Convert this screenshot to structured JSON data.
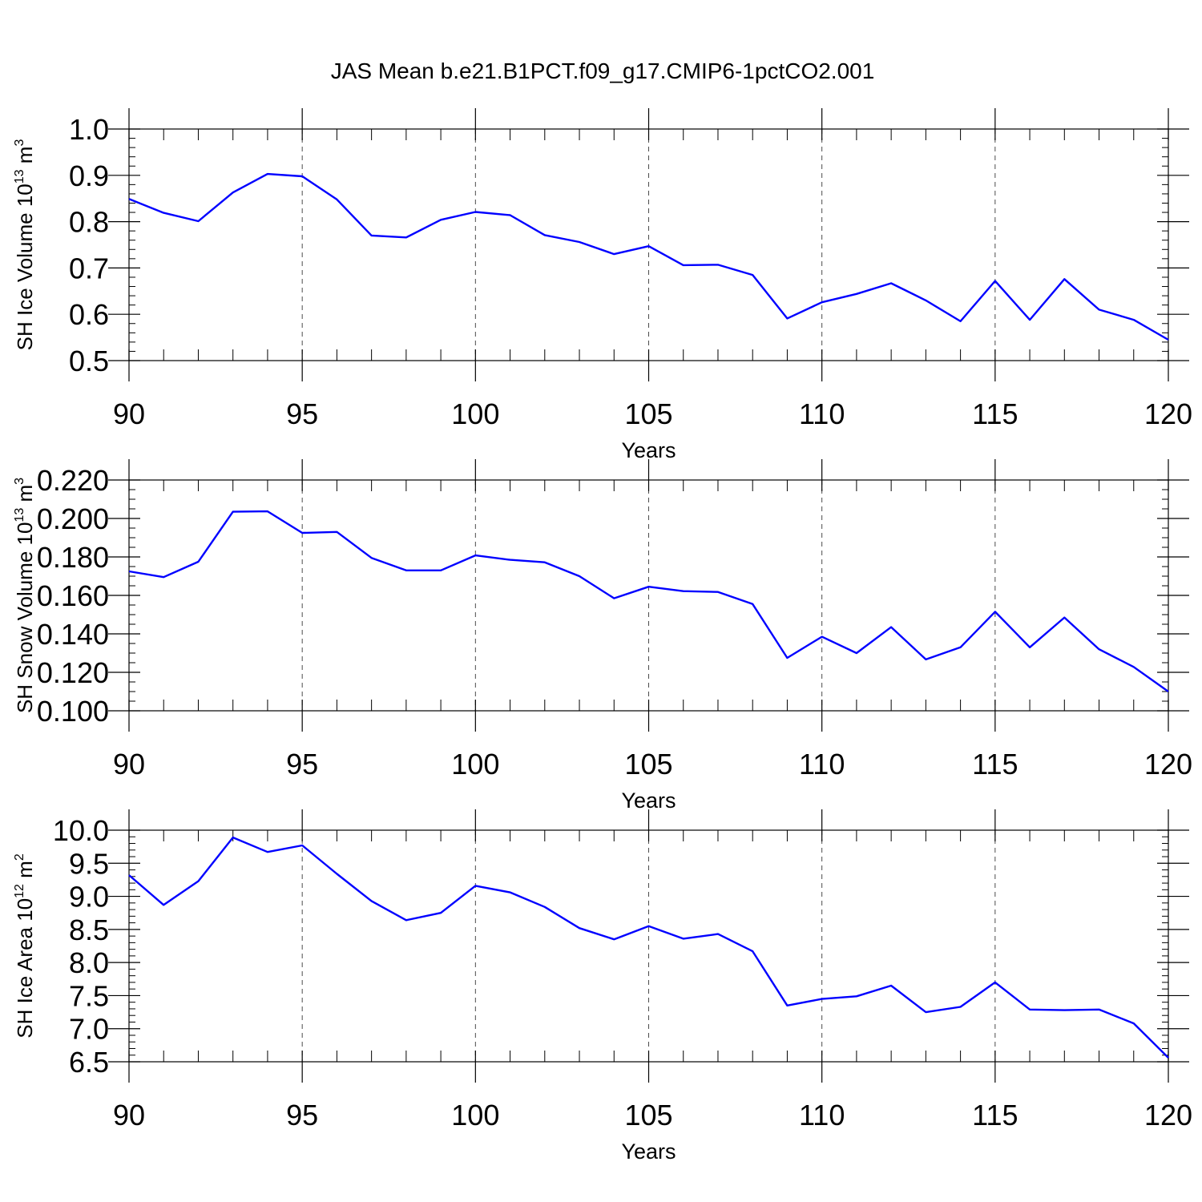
{
  "title": "JAS Mean b.e21.B1PCT.f09_g17.CMIP6-1pctCO2.001",
  "line_color": "#0000ff",
  "chart_data": [
    {
      "type": "line",
      "title": "JAS Mean b.e21.B1PCT.f09_g17.CMIP6-1pctCO2.001",
      "xlabel": "Years",
      "ylabel_main": "SH Ice Volume 10",
      "ylabel_sup": "13",
      "ylabel_unit": "m",
      "ylabel_unit_sup": "3",
      "xlim": [
        90,
        120
      ],
      "ylim": [
        0.5,
        1.0
      ],
      "x_ticks": [
        90,
        95,
        100,
        105,
        110,
        115,
        120
      ],
      "x_tick_labels": [
        "90",
        "95",
        "100",
        "105",
        "110",
        "115",
        "120"
      ],
      "y_ticks": [
        0.5,
        0.6,
        0.7,
        0.8,
        0.9,
        1.0
      ],
      "y_tick_labels": [
        "0.5",
        "0.6",
        "0.7",
        "0.8",
        "0.9",
        "1.0"
      ],
      "y_minor_step": 0.02,
      "grid": "dashed vertical at major x ticks",
      "x": [
        90,
        91,
        92,
        93,
        94,
        95,
        96,
        97,
        98,
        99,
        100,
        101,
        102,
        103,
        104,
        105,
        106,
        107,
        108,
        109,
        110,
        111,
        112,
        113,
        114,
        115,
        116,
        117,
        118,
        119,
        120
      ],
      "values": [
        0.849,
        0.819,
        0.801,
        0.863,
        0.903,
        0.898,
        0.848,
        0.77,
        0.766,
        0.804,
        0.821,
        0.814,
        0.771,
        0.756,
        0.73,
        0.747,
        0.706,
        0.707,
        0.685,
        0.591,
        0.626,
        0.644,
        0.667,
        0.63,
        0.585,
        0.672,
        0.588,
        0.676,
        0.61,
        0.588,
        0.545
      ]
    },
    {
      "type": "line",
      "xlabel": "Years",
      "ylabel_main": "SH Snow Volume 10",
      "ylabel_sup": "13",
      "ylabel_unit": "m",
      "ylabel_unit_sup": "3",
      "xlim": [
        90,
        120
      ],
      "ylim": [
        0.1,
        0.22
      ],
      "x_ticks": [
        90,
        95,
        100,
        105,
        110,
        115,
        120
      ],
      "x_tick_labels": [
        "90",
        "95",
        "100",
        "105",
        "110",
        "115",
        "120"
      ],
      "y_ticks": [
        0.1,
        0.12,
        0.14,
        0.16,
        0.18,
        0.2,
        0.22
      ],
      "y_tick_labels": [
        "0.100",
        "0.120",
        "0.140",
        "0.160",
        "0.180",
        "0.200",
        "0.220"
      ],
      "y_minor_step": 0.005,
      "grid": "dashed vertical at major x ticks",
      "x": [
        90,
        91,
        92,
        93,
        94,
        95,
        96,
        97,
        98,
        99,
        100,
        101,
        102,
        103,
        104,
        105,
        106,
        107,
        108,
        109,
        110,
        111,
        112,
        113,
        114,
        115,
        116,
        117,
        118,
        119,
        120
      ],
      "values": [
        0.1725,
        0.1695,
        0.1775,
        0.2035,
        0.2037,
        0.1925,
        0.193,
        0.1795,
        0.173,
        0.173,
        0.1808,
        0.1785,
        0.1772,
        0.17,
        0.1585,
        0.1645,
        0.1622,
        0.1618,
        0.1555,
        0.1275,
        0.1385,
        0.13,
        0.1435,
        0.1267,
        0.133,
        0.1515,
        0.133,
        0.1485,
        0.132,
        0.1228,
        0.11
      ]
    },
    {
      "type": "line",
      "xlabel": "Years",
      "ylabel_main": "SH Ice Area 10",
      "ylabel_sup": "12",
      "ylabel_unit": "m",
      "ylabel_unit_sup": "2",
      "xlim": [
        90,
        120
      ],
      "ylim": [
        6.5,
        10.0
      ],
      "x_ticks": [
        90,
        95,
        100,
        105,
        110,
        115,
        120
      ],
      "x_tick_labels": [
        "90",
        "95",
        "100",
        "105",
        "110",
        "115",
        "120"
      ],
      "y_ticks": [
        6.5,
        7.0,
        7.5,
        8.0,
        8.5,
        9.0,
        9.5,
        10.0
      ],
      "y_tick_labels": [
        "6.5",
        "7.0",
        "7.5",
        "8.0",
        "8.5",
        "9.0",
        "9.5",
        "10.0"
      ],
      "y_minor_step": 0.1,
      "grid": "dashed vertical at major x ticks",
      "x": [
        90,
        91,
        92,
        93,
        94,
        95,
        96,
        97,
        98,
        99,
        100,
        101,
        102,
        103,
        104,
        105,
        106,
        107,
        108,
        109,
        110,
        111,
        112,
        113,
        114,
        115,
        116,
        117,
        118,
        119,
        120
      ],
      "values": [
        9.32,
        8.87,
        9.23,
        9.89,
        9.67,
        9.77,
        9.34,
        8.93,
        8.64,
        8.75,
        9.16,
        9.06,
        8.84,
        8.52,
        8.35,
        8.55,
        8.36,
        8.43,
        8.17,
        7.35,
        7.45,
        7.49,
        7.65,
        7.25,
        7.33,
        7.7,
        7.29,
        7.28,
        7.29,
        7.08,
        6.56
      ]
    }
  ]
}
